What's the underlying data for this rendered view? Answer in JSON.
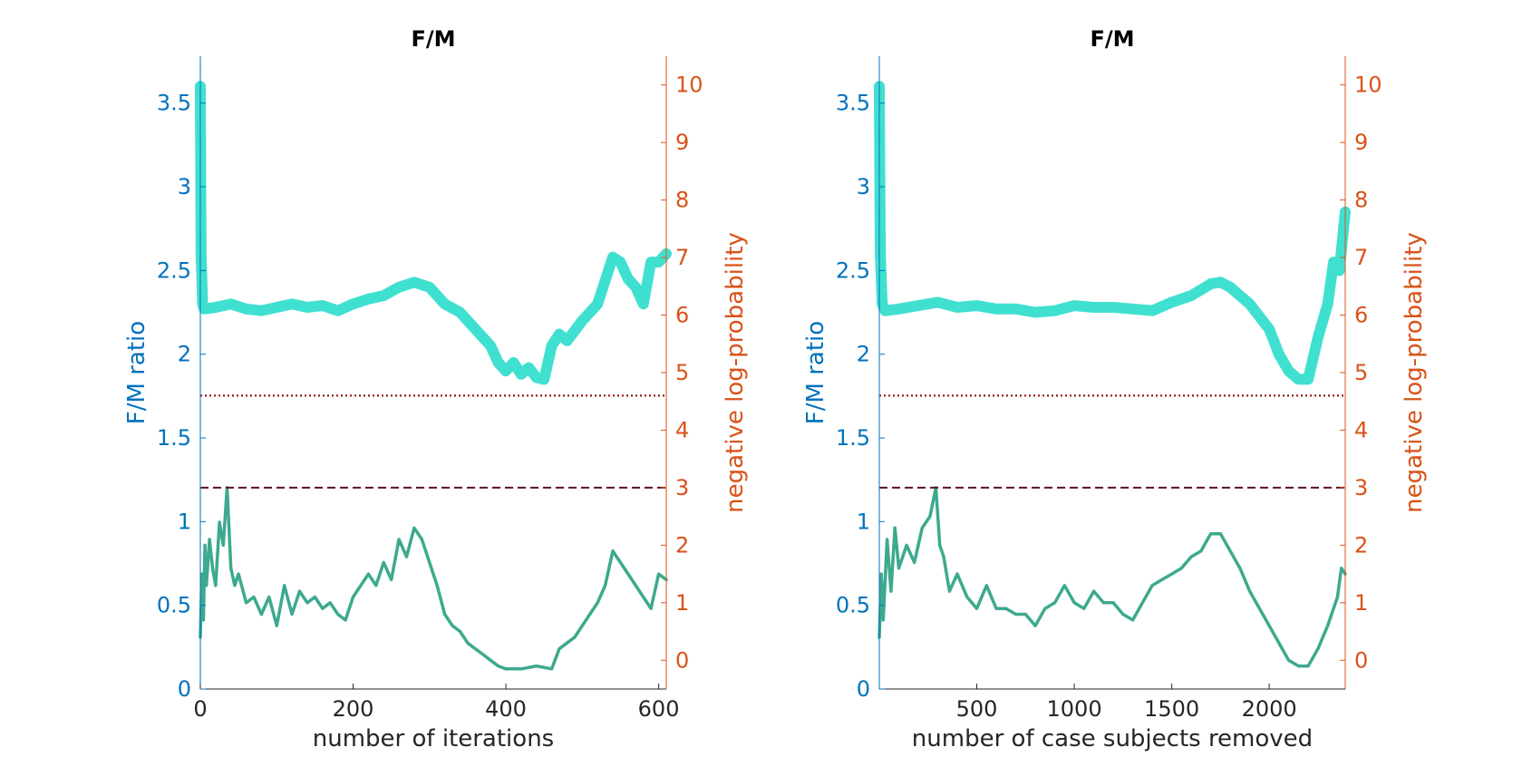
{
  "colors": {
    "left_axis": "#0072BD",
    "right_axis": "#D95319",
    "ratio_line": "#40E0D0",
    "logp_line": "#3DA98E",
    "threshold_dotted": "#8B0000",
    "threshold_dashed": "#5C1020",
    "axes_box": "#262626"
  },
  "chart_data": [
    {
      "type": "line",
      "title": "F/M",
      "xlabel": "number of iterations",
      "ylabel_left": "F/M ratio",
      "ylabel_right": "negative log-probability",
      "xlim": [
        0,
        610
      ],
      "ylim_left": [
        0,
        3.78
      ],
      "ylim_right": [
        -0.5,
        10.5
      ],
      "xticks": [
        0,
        200,
        400,
        600
      ],
      "xtick_labels": [
        "0",
        "200",
        "400",
        "600"
      ],
      "yticks_left": [
        0,
        0.5,
        1,
        1.5,
        2,
        2.5,
        3,
        3.5
      ],
      "ytick_labels_left": [
        "0",
        "0.5",
        "1",
        "1.5",
        "2",
        "2.5",
        "3",
        "3.5"
      ],
      "yticks_right": [
        0,
        1,
        2,
        3,
        4,
        5,
        6,
        7,
        8,
        9,
        10
      ],
      "ytick_labels_right": [
        "0",
        "1",
        "2",
        "3",
        "4",
        "5",
        "6",
        "7",
        "8",
        "9",
        "10"
      ],
      "threshold_dotted_right": 4.6,
      "threshold_dashed_right": 3.0,
      "series": [
        {
          "name": "F/M ratio",
          "axis": "left",
          "x": [
            0,
            1,
            3,
            5,
            20,
            40,
            60,
            80,
            100,
            120,
            140,
            160,
            180,
            200,
            220,
            240,
            260,
            280,
            300,
            320,
            340,
            360,
            380,
            390,
            400,
            410,
            420,
            430,
            440,
            450,
            455,
            460,
            470,
            480,
            500,
            520,
            540,
            550,
            560,
            570,
            580,
            590,
            600,
            610
          ],
          "y": [
            3.6,
            2.6,
            2.3,
            2.27,
            2.28,
            2.3,
            2.27,
            2.26,
            2.28,
            2.3,
            2.28,
            2.29,
            2.26,
            2.3,
            2.33,
            2.35,
            2.4,
            2.43,
            2.4,
            2.3,
            2.25,
            2.15,
            2.05,
            1.95,
            1.9,
            1.95,
            1.88,
            1.92,
            1.86,
            1.85,
            1.95,
            2.05,
            2.12,
            2.08,
            2.2,
            2.3,
            2.58,
            2.55,
            2.45,
            2.4,
            2.3,
            2.55,
            2.55,
            2.6
          ]
        },
        {
          "name": "negative log-probability",
          "axis": "right",
          "x": [
            0,
            2,
            4,
            6,
            8,
            12,
            16,
            20,
            25,
            30,
            35,
            40,
            45,
            50,
            60,
            70,
            80,
            90,
            100,
            110,
            120,
            130,
            140,
            150,
            160,
            170,
            180,
            190,
            200,
            210,
            220,
            230,
            240,
            250,
            260,
            270,
            280,
            290,
            300,
            310,
            320,
            330,
            340,
            350,
            360,
            370,
            380,
            390,
            400,
            420,
            440,
            460,
            470,
            480,
            490,
            500,
            510,
            520,
            530,
            540,
            550,
            560,
            570,
            580,
            590,
            600,
            610
          ],
          "y": [
            0.4,
            1.5,
            0.7,
            2.0,
            1.3,
            2.1,
            1.6,
            1.3,
            2.4,
            2.0,
            3.0,
            1.6,
            1.3,
            1.5,
            1.0,
            1.1,
            0.8,
            1.1,
            0.6,
            1.3,
            0.8,
            1.2,
            1.0,
            1.1,
            0.9,
            1.0,
            0.8,
            0.7,
            1.1,
            1.3,
            1.5,
            1.3,
            1.7,
            1.4,
            2.1,
            1.8,
            2.3,
            2.1,
            1.7,
            1.3,
            0.8,
            0.6,
            0.5,
            0.3,
            0.2,
            0.1,
            0.0,
            -0.1,
            -0.15,
            -0.15,
            -0.1,
            -0.15,
            0.2,
            0.3,
            0.4,
            0.6,
            0.8,
            1.0,
            1.3,
            1.9,
            1.7,
            1.5,
            1.3,
            1.1,
            0.9,
            1.5,
            1.4
          ]
        }
      ]
    },
    {
      "type": "line",
      "title": "F/M",
      "xlabel": "number of case subjects removed",
      "ylabel_left": "F/M ratio",
      "ylabel_right": "negative log-probability",
      "xlim": [
        0,
        2390
      ],
      "ylim_left": [
        0,
        3.78
      ],
      "ylim_right": [
        -0.5,
        10.5
      ],
      "xticks": [
        500,
        1000,
        1500,
        2000
      ],
      "xtick_labels": [
        "500",
        "1000",
        "1500",
        "2000"
      ],
      "yticks_left": [
        0,
        0.5,
        1,
        1.5,
        2,
        2.5,
        3,
        3.5
      ],
      "ytick_labels_left": [
        "0",
        "0.5",
        "1",
        "1.5",
        "2",
        "2.5",
        "3",
        "3.5"
      ],
      "yticks_right": [
        0,
        1,
        2,
        3,
        4,
        5,
        6,
        7,
        8,
        9,
        10
      ],
      "ytick_labels_right": [
        "0",
        "1",
        "2",
        "3",
        "4",
        "5",
        "6",
        "7",
        "8",
        "9",
        "10"
      ],
      "threshold_dotted_right": 4.6,
      "threshold_dashed_right": 3.0,
      "series": [
        {
          "name": "F/M ratio",
          "axis": "left",
          "x": [
            0,
            5,
            15,
            30,
            100,
            200,
            300,
            400,
            500,
            600,
            700,
            800,
            900,
            1000,
            1100,
            1200,
            1300,
            1400,
            1500,
            1600,
            1700,
            1750,
            1800,
            1900,
            2000,
            2050,
            2100,
            2150,
            2200,
            2250,
            2300,
            2330,
            2360,
            2390
          ],
          "y": [
            3.6,
            2.6,
            2.3,
            2.26,
            2.27,
            2.29,
            2.31,
            2.28,
            2.29,
            2.27,
            2.27,
            2.25,
            2.26,
            2.29,
            2.28,
            2.28,
            2.27,
            2.26,
            2.31,
            2.35,
            2.42,
            2.43,
            2.4,
            2.3,
            2.15,
            2.0,
            1.9,
            1.85,
            1.85,
            2.1,
            2.3,
            2.55,
            2.5,
            2.85
          ]
        },
        {
          "name": "negative log-probability",
          "axis": "right",
          "x": [
            0,
            10,
            20,
            40,
            60,
            80,
            100,
            140,
            180,
            220,
            260,
            290,
            310,
            330,
            360,
            400,
            450,
            500,
            550,
            600,
            650,
            700,
            750,
            800,
            850,
            900,
            950,
            1000,
            1050,
            1100,
            1150,
            1200,
            1250,
            1300,
            1350,
            1400,
            1450,
            1500,
            1550,
            1600,
            1650,
            1700,
            1750,
            1800,
            1850,
            1900,
            1950,
            2000,
            2050,
            2100,
            2150,
            2200,
            2250,
            2300,
            2350,
            2370,
            2390
          ],
          "y": [
            0.4,
            1.5,
            0.7,
            2.1,
            1.2,
            2.3,
            1.6,
            2.0,
            1.7,
            2.3,
            2.5,
            3.0,
            2.0,
            1.8,
            1.2,
            1.5,
            1.1,
            0.9,
            1.3,
            0.9,
            0.9,
            0.8,
            0.8,
            0.6,
            0.9,
            1.0,
            1.3,
            1.0,
            0.9,
            1.2,
            1.0,
            1.0,
            0.8,
            0.7,
            1.0,
            1.3,
            1.4,
            1.5,
            1.6,
            1.8,
            1.9,
            2.2,
            2.2,
            1.9,
            1.6,
            1.2,
            0.9,
            0.6,
            0.3,
            0.0,
            -0.1,
            -0.1,
            0.2,
            0.6,
            1.1,
            1.6,
            1.5
          ]
        }
      ]
    }
  ]
}
